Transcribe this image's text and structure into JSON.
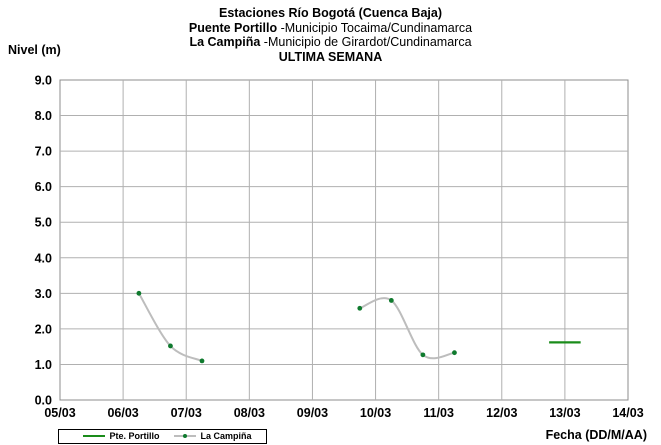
{
  "chart_data": {
    "type": "line",
    "title": {
      "line1": "Estaciones Río Bogotá (Cuenca Baja)",
      "line2_bold": "Puente Portillo",
      "line2_rest": " -Municipio Tocaima/Cundinamarca",
      "line3_bold": "La Campiña",
      "line3_rest": " -Municipio de Girardot/Cundinamarca",
      "line4": "ULTIMA SEMANA"
    },
    "ylabel": "Nivel (m)",
    "xlabel": "Fecha (DD/M/AA)",
    "ylim": [
      0,
      9
    ],
    "yticks": [
      "0.0",
      "1.0",
      "2.0",
      "3.0",
      "4.0",
      "5.0",
      "6.0",
      "7.0",
      "8.0",
      "9.0"
    ],
    "xticks": [
      "05/03",
      "06/03",
      "07/03",
      "08/03",
      "09/03",
      "10/03",
      "11/03",
      "12/03",
      "13/03",
      "14/03"
    ],
    "grid": true,
    "legend_position": "bottom-left",
    "series": [
      {
        "name": "Pte. Portillo",
        "color": "#1a8c1a",
        "markers": false,
        "segments": [
          [
            [
              7.75,
              1.62
            ],
            [
              8.25,
              1.62
            ]
          ]
        ]
      },
      {
        "name": "La Campiña",
        "color": "#bdbdbd",
        "marker_color": "#0f7a2e",
        "markers": true,
        "segments": [
          [
            [
              1.25,
              3.0
            ],
            [
              1.75,
              1.52
            ],
            [
              2.25,
              1.1
            ]
          ],
          [
            [
              4.75,
              2.58
            ],
            [
              5.25,
              2.8
            ],
            [
              5.75,
              1.27
            ],
            [
              6.25,
              1.33
            ]
          ]
        ]
      }
    ]
  }
}
